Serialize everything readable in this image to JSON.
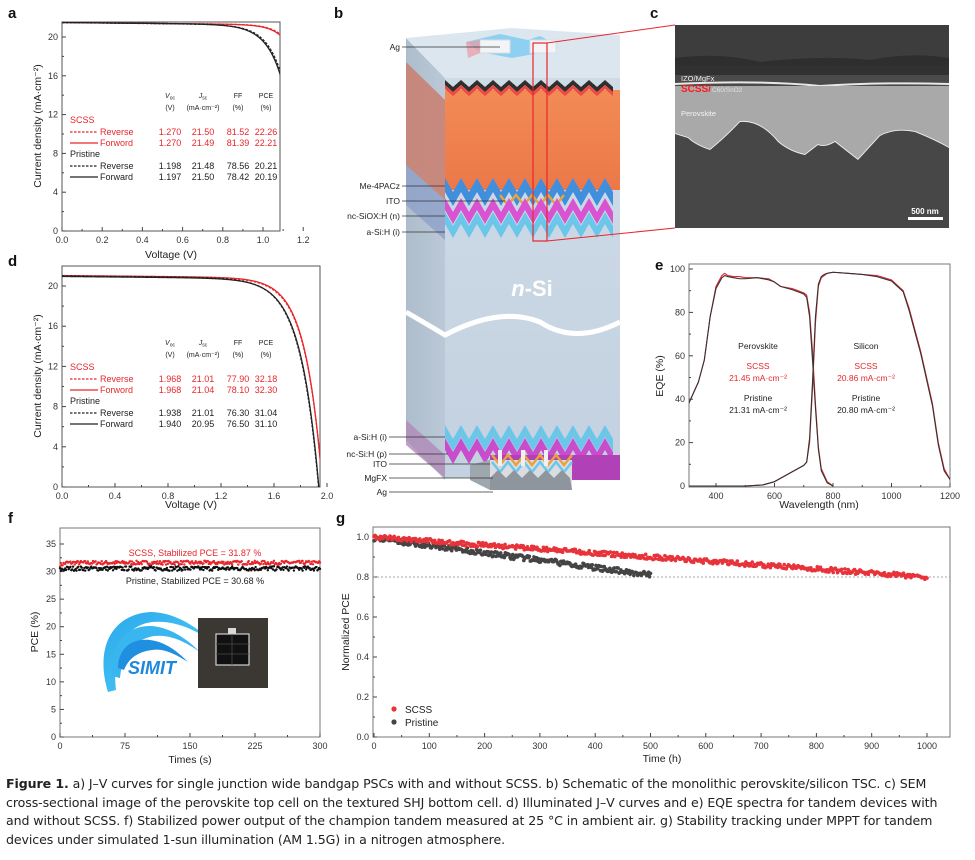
{
  "figure": {
    "panel_labels": [
      "a",
      "b",
      "c",
      "d",
      "e",
      "f",
      "g"
    ],
    "caption": {
      "lead": "Figure 1.",
      "lines": [
        " a) J–V curves for single junction wide bandgap PSCs with and without SCSS. b) Schematic of the monolithic perovskite/silicon TSC. c) SEM",
        "cross-sectional image of the perovskite top cell on the textured SHJ bottom cell. d) Illuminated J–V curves and e) EQE spectra for tandem devices with",
        "and without SCSS. f) Stabilized power output of the champion tandem measured at 25 °C in ambient air. g) Stability tracking under MPPT for tandem",
        "devices under simulated 1-sun illumination (AM 1.5G) in a nitrogen atmosphere."
      ]
    },
    "colors": {
      "scss": "#e8262b",
      "pristine": "#222222",
      "pristine_dots": "#444444"
    }
  },
  "schematic_b": {
    "top_labels": [
      "Ag",
      "Me-4PACz",
      "ITO",
      "nc-SiOX:H (n)",
      "a-Si:H (i)"
    ],
    "bulk_label": "n-Si",
    "bottom_labels": [
      "a-Si:H (i)",
      "nc-Si:H (p)",
      "ITO",
      "MgFX",
      "Ag"
    ]
  },
  "sem_c": {
    "label_top": "IZO/MgFx",
    "label_scss": "SCSS/",
    "label_scss_rest": "C60/SnO2",
    "label_perovskite": "Perovskite",
    "scale_bar": "500 nm"
  },
  "chart_data": [
    {
      "id": "a",
      "type": "line",
      "title": "",
      "xlabel": "Voltage (V)",
      "ylabel": "Current density (mA·cm⁻²)",
      "xlim": [
        0,
        1.3
      ],
      "ylim": [
        0,
        22
      ],
      "xticks": [
        "0.0",
        "0.2",
        "0.4",
        "0.6",
        "0.8",
        "1.0",
        "1.2"
      ],
      "yticks": [
        "0",
        "4",
        "8",
        "12",
        "16",
        "20"
      ],
      "table": {
        "headers": [
          "V_OC",
          "J_SC",
          "FF",
          "PCE"
        ],
        "units": [
          "(V)",
          "(mA·cm⁻²)",
          "(%)",
          "(%)"
        ],
        "groups": [
          {
            "name": "SCSS",
            "color": "#e8262b",
            "rows": [
              {
                "label": "Reverse",
                "style": "dashed",
                "values": [
                  "1.270",
                  "21.50",
                  "81.52",
                  "22.26"
                ]
              },
              {
                "label": "Forword",
                "style": "solid",
                "values": [
                  "1.270",
                  "21.49",
                  "81.39",
                  "22.21"
                ]
              }
            ]
          },
          {
            "name": "Pristine",
            "color": "#222222",
            "rows": [
              {
                "label": "Reverse",
                "style": "dashed",
                "values": [
                  "1.198",
                  "21.48",
                  "78.56",
                  "20.21"
                ]
              },
              {
                "label": "Forward",
                "style": "solid",
                "values": [
                  "1.197",
                  "21.50",
                  "78.42",
                  "20.19"
                ]
              }
            ]
          }
        ]
      },
      "series": [
        {
          "name": "SCSS Reverse",
          "style": "dashed",
          "color": "#e8262b",
          "jsc": 21.5,
          "voc": 1.27,
          "knee": 0.06
        },
        {
          "name": "SCSS Forword",
          "style": "solid",
          "color": "#e8262b",
          "jsc": 21.49,
          "voc": 1.27,
          "knee": 0.062
        },
        {
          "name": "Pristine Reverse",
          "style": "dashed",
          "color": "#222222",
          "jsc": 21.48,
          "voc": 1.198,
          "knee": 0.075
        },
        {
          "name": "Pristine Forward",
          "style": "solid",
          "color": "#222222",
          "jsc": 21.5,
          "voc": 1.197,
          "knee": 0.078
        }
      ]
    },
    {
      "id": "d",
      "type": "line",
      "title": "",
      "xlabel": "Voltage (V)",
      "ylabel": "Current density (mA·cm⁻²)",
      "xlim": [
        0,
        2.0
      ],
      "ylim": [
        0,
        22
      ],
      "xticks": [
        "0.0",
        "0.4",
        "0.8",
        "1.2",
        "1.6",
        "2.0"
      ],
      "yticks": [
        "0",
        "4",
        "8",
        "12",
        "16",
        "20"
      ],
      "table": {
        "headers": [
          "V_OC",
          "J_SC",
          "FF",
          "PCE"
        ],
        "units": [
          "(V)",
          "(mA·cm⁻²)",
          "(%)",
          "(%)"
        ],
        "groups": [
          {
            "name": "SCSS",
            "color": "#e8262b",
            "rows": [
              {
                "label": "Reverse",
                "style": "dashed",
                "values": [
                  "1.968",
                  "21.01",
                  "77.90",
                  "32.18"
                ]
              },
              {
                "label": "Forword",
                "style": "solid",
                "values": [
                  "1.968",
                  "21.04",
                  "78.10",
                  "32.30"
                ]
              }
            ]
          },
          {
            "name": "Pristine",
            "color": "#222222",
            "rows": [
              {
                "label": "Reverse",
                "style": "dashed",
                "values": [
                  "1.938",
                  "21.01",
                  "76.30",
                  "31.04"
                ]
              },
              {
                "label": "Forward",
                "style": "solid",
                "values": [
                  "1.940",
                  "20.95",
                  "76.50",
                  "31.10"
                ]
              }
            ]
          }
        ]
      },
      "series": [
        {
          "name": "SCSS Reverse",
          "style": "dashed",
          "color": "#e8262b",
          "jsc": 21.01,
          "voc": 1.968,
          "knee": 0.13
        },
        {
          "name": "SCSS Forword",
          "style": "solid",
          "color": "#e8262b",
          "jsc": 21.04,
          "voc": 1.968,
          "knee": 0.128
        },
        {
          "name": "Pristine Reverse",
          "style": "dashed",
          "color": "#222222",
          "jsc": 21.01,
          "voc": 1.938,
          "knee": 0.14
        },
        {
          "name": "Pristine Forward",
          "style": "solid",
          "color": "#222222",
          "jsc": 20.95,
          "voc": 1.94,
          "knee": 0.138
        }
      ]
    },
    {
      "id": "e",
      "type": "line",
      "title": "",
      "xlabel": "Wavelength (nm)",
      "ylabel": "EQE (%)",
      "xlim": [
        300,
        1200
      ],
      "ylim": [
        0,
        100
      ],
      "xticks": [
        "400",
        "600",
        "800",
        "1000",
        "1200"
      ],
      "yticks": [
        "0",
        "20",
        "40",
        "60",
        "80",
        "100"
      ],
      "annotations": [
        {
          "text": "Perovskite",
          "color": "#222222"
        },
        {
          "text": "SCSS",
          "color": "#e8262b"
        },
        {
          "text": "21.45 mA·cm⁻²",
          "color": "#e8262b"
        },
        {
          "text": "Pristine",
          "color": "#222222"
        },
        {
          "text": "21.31 mA·cm⁻²",
          "color": "#222222"
        },
        {
          "text": "Silicon",
          "color": "#222222"
        },
        {
          "text": "SCSS",
          "color": "#e8262b"
        },
        {
          "text": "20.86 mA·cm⁻²",
          "color": "#e8262b"
        },
        {
          "text": "Pristine",
          "color": "#222222"
        },
        {
          "text": "20.80 mA·cm⁻²",
          "color": "#222222"
        }
      ],
      "series": [
        {
          "name": "Perovskite SCSS",
          "color": "#e8262b",
          "x": [
            300,
            320,
            340,
            360,
            380,
            400,
            420,
            430,
            440,
            460,
            480,
            500,
            540,
            580,
            600,
            620,
            660,
            680,
            700,
            710,
            720,
            730,
            740,
            750,
            760,
            780,
            800
          ],
          "y": [
            36,
            42,
            48,
            58,
            78,
            92,
            97,
            98,
            97,
            96.5,
            96.5,
            96,
            96,
            95.5,
            94,
            92,
            91,
            90,
            89,
            88,
            80,
            62,
            38,
            18,
            8,
            2,
            0
          ]
        },
        {
          "name": "Perovskite Pristine",
          "color": "#333333",
          "x": [
            300,
            320,
            340,
            360,
            380,
            400,
            420,
            430,
            440,
            460,
            480,
            500,
            540,
            580,
            600,
            620,
            660,
            680,
            700,
            710,
            720,
            730,
            740,
            750,
            760,
            780,
            800
          ],
          "y": [
            36,
            42,
            48,
            58,
            78,
            91,
            96,
            97,
            96.5,
            96,
            95.5,
            95.5,
            96,
            95,
            94,
            92,
            90.5,
            89.5,
            88.5,
            87,
            78,
            58,
            36,
            17,
            7,
            1.5,
            0
          ]
        },
        {
          "name": "Silicon SCSS",
          "color": "#e8262b",
          "x": [
            300,
            500,
            560,
            600,
            640,
            680,
            700,
            710,
            720,
            730,
            740,
            750,
            760,
            770,
            780,
            800,
            850,
            900,
            950,
            1000,
            1040,
            1060,
            1100,
            1140,
            1160,
            1180,
            1200
          ],
          "y": [
            0,
            0,
            0.5,
            2,
            5,
            8,
            9.5,
            11,
            20,
            45,
            75,
            92,
            96,
            97,
            98,
            98.5,
            98,
            97.5,
            97,
            95,
            90,
            82,
            62,
            38,
            20,
            8,
            3
          ]
        },
        {
          "name": "Silicon Pristine",
          "color": "#333333",
          "x": [
            300,
            500,
            560,
            600,
            640,
            680,
            700,
            710,
            720,
            730,
            740,
            750,
            760,
            770,
            780,
            800,
            850,
            900,
            950,
            1000,
            1040,
            1060,
            1100,
            1140,
            1160,
            1180,
            1200
          ],
          "y": [
            0,
            0,
            0.5,
            2,
            5,
            8,
            9.5,
            11,
            22,
            48,
            78,
            93,
            96.5,
            97.5,
            98,
            98.5,
            98,
            97.5,
            96.5,
            94.5,
            89.5,
            81,
            61,
            37,
            19,
            7,
            3
          ]
        }
      ]
    },
    {
      "id": "f",
      "type": "scatter",
      "title": "",
      "xlabel": "Times (s)",
      "ylabel": "PCE (%)",
      "xlim": [
        0,
        300
      ],
      "ylim": [
        0,
        37
      ],
      "xticks": [
        "0",
        "75",
        "150",
        "225",
        "300"
      ],
      "yticks": [
        "0",
        "5",
        "10",
        "15",
        "20",
        "25",
        "30",
        "35"
      ],
      "annotations": [
        {
          "text": "SCSS, Stabilized PCE = 31.87 %",
          "color": "#e8262b"
        },
        {
          "text": "Pristine, Stabilized PCE = 30.68 %",
          "color": "#222222"
        }
      ],
      "inset": {
        "logo_text": "SIMIT"
      },
      "series": [
        {
          "name": "SCSS",
          "color": "#e8262b",
          "mean": 31.6,
          "start": 31.2,
          "spread": 0.35,
          "n": 300
        },
        {
          "name": "Pristine",
          "color": "#111111",
          "mean": 30.55,
          "start": 30.3,
          "spread": 0.4,
          "n": 300
        }
      ]
    },
    {
      "id": "g",
      "type": "scatter",
      "title": "",
      "xlabel": "Time (h)",
      "ylabel": "Normalized PCE",
      "xlim": [
        0,
        1050
      ],
      "ylim": [
        0,
        1.05
      ],
      "xticks": [
        "0",
        "100",
        "200",
        "300",
        "400",
        "500",
        "600",
        "700",
        "800",
        "900",
        "1000"
      ],
      "yticks": [
        "0.0",
        "0.2",
        "0.4",
        "0.6",
        "0.8",
        "1.0"
      ],
      "reference_line": 0.8,
      "legend": {
        "position": "bottom-left",
        "entries": [
          "SCSS",
          "Pristine"
        ]
      },
      "series": [
        {
          "name": "SCSS",
          "color": "#e8333a",
          "x_start": 0,
          "x_end": 1000,
          "y_start": 1.0,
          "y_end": 0.8,
          "noise": 0.012
        },
        {
          "name": "Pristine",
          "color": "#444444",
          "x_start": 0,
          "x_end": 500,
          "y_start": 0.995,
          "y_end": 0.81,
          "noise": 0.014
        }
      ]
    }
  ]
}
